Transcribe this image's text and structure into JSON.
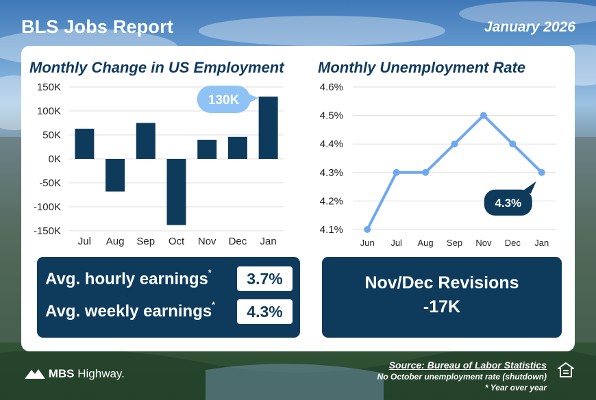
{
  "header": {
    "title": "BLS Jobs Report",
    "date": "January 2026"
  },
  "chart_data": [
    {
      "type": "bar",
      "title": "Monthly Change in US Employment",
      "categories": [
        "Jul",
        "Aug",
        "Sep",
        "Oct",
        "Nov",
        "Dec",
        "Jan"
      ],
      "values": [
        63000,
        -68000,
        75000,
        -138000,
        40000,
        46000,
        130000
      ],
      "ylim": [
        -150000,
        150000
      ],
      "ytick_values": [
        150000,
        100000,
        50000,
        0,
        -50000,
        -100000,
        -150000
      ],
      "ytick_labels": [
        "150K",
        "100K",
        "50K",
        "0K",
        "-50K",
        "-100K",
        "-150K"
      ],
      "grid": true,
      "bar_color": "#0e3b5c",
      "callout": {
        "category": "Jan",
        "label": "130K",
        "color": "#8fc3f5"
      }
    },
    {
      "type": "line",
      "title": "Monthly Unemployment Rate",
      "categories": [
        "Jun",
        "Jul",
        "Aug",
        "Sep",
        "Nov",
        "Dec",
        "Jan"
      ],
      "values": [
        4.1,
        4.3,
        4.3,
        4.4,
        4.5,
        4.4,
        4.3
      ],
      "ylim": [
        4.1,
        4.6
      ],
      "ytick_values": [
        4.6,
        4.5,
        4.4,
        4.3,
        4.2,
        4.1
      ],
      "ytick_labels": [
        "4.6%",
        "4.5%",
        "4.4%",
        "4.3%",
        "4.2%",
        "4.1%"
      ],
      "grid": true,
      "line_color": "#6ea8ef",
      "callout": {
        "category": "Jan",
        "label": "4.3%",
        "color": "#0e3b5c"
      }
    }
  ],
  "earnings": {
    "hourly_label": "Avg. hourly earnings",
    "hourly_value": "3.7%",
    "weekly_label": "Avg. weekly earnings",
    "weekly_value": "4.3%",
    "footnote_mark": "*"
  },
  "revisions": {
    "label": "Nov/Dec Revisions",
    "value": "-17K"
  },
  "footer": {
    "logo_bold": "MBS",
    "logo_rest": " Highway.",
    "source": "Source: Bureau of Labor Statistics",
    "note": "No October unemployment rate (shutdown)",
    "yoy": "* Year over year",
    "eho_icon": "equal-housing-icon"
  },
  "colors": {
    "navy": "#0e3b5c",
    "title_blue": "#103a5e",
    "light_blue": "#8fc3f5"
  }
}
